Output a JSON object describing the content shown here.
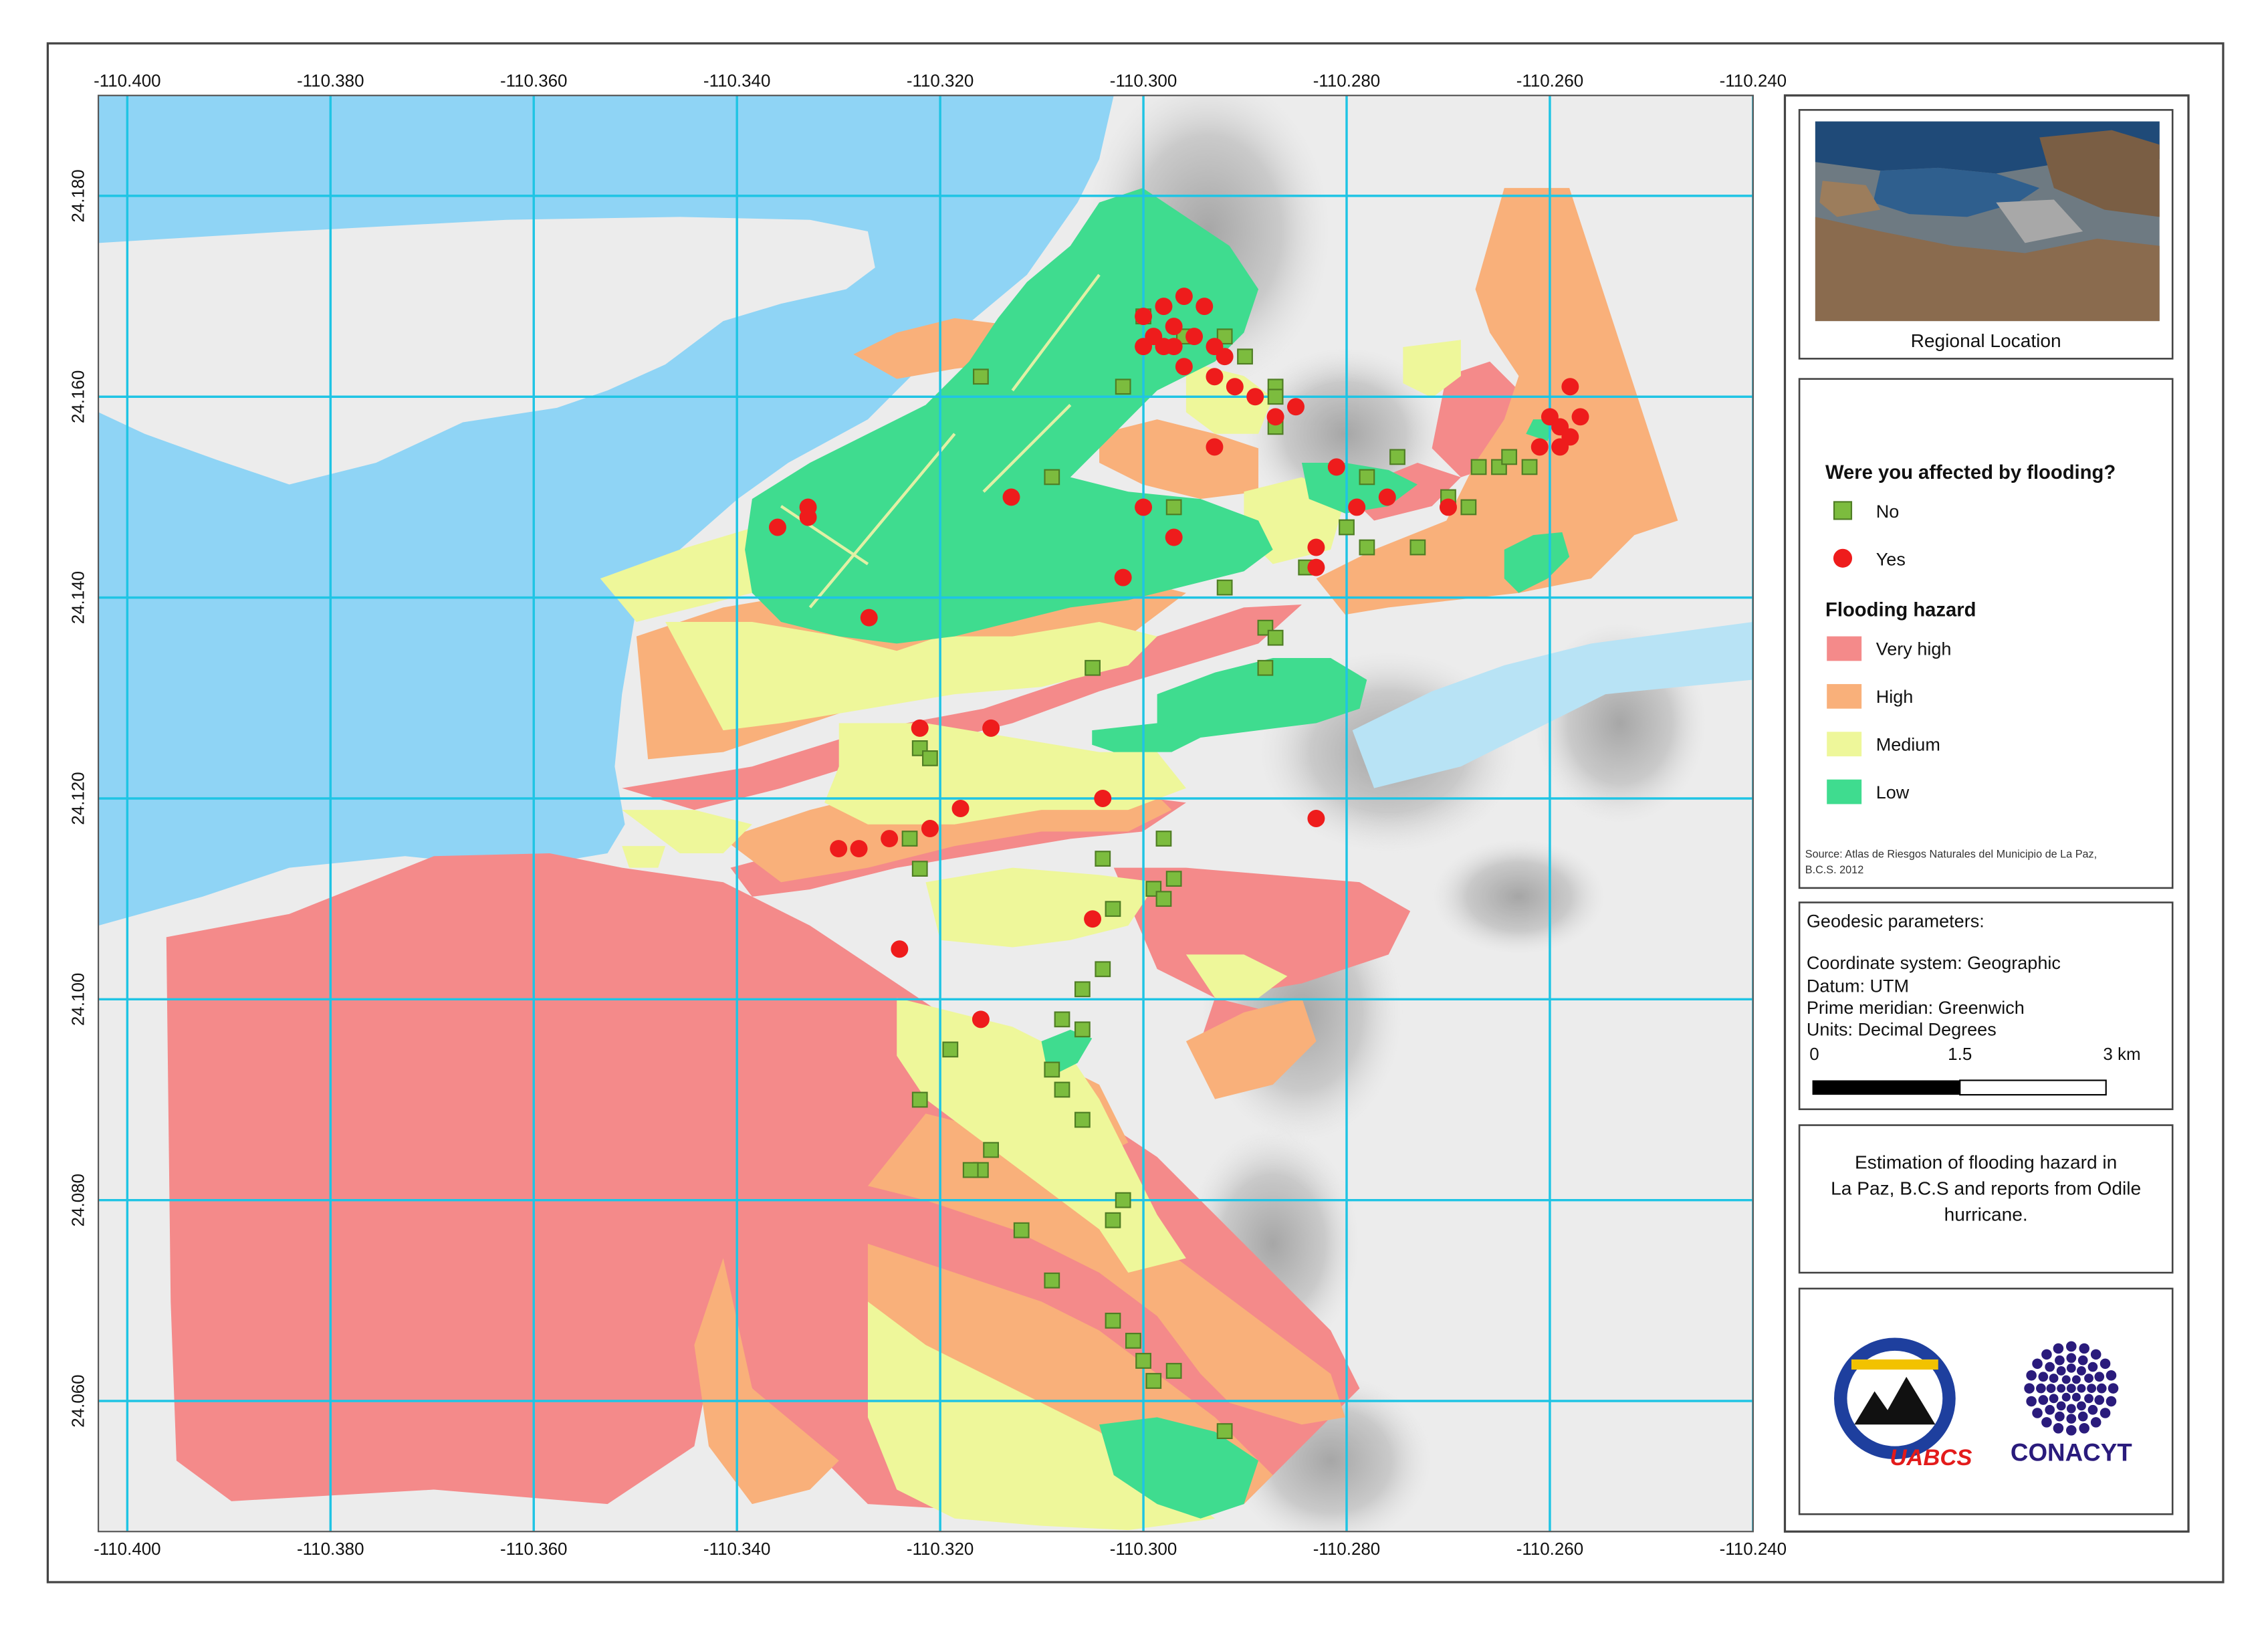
{
  "map": {
    "lon_ticks": [
      "-110.400",
      "-110.380",
      "-110.360",
      "-110.340",
      "-110.320",
      "-110.300",
      "-110.280",
      "-110.260",
      "-110.240"
    ],
    "lat_ticks": [
      "24.180",
      "24.160",
      "24.140",
      "24.120",
      "24.100",
      "24.080",
      "24.060"
    ],
    "lon_range": [
      -110.4,
      -110.24
    ],
    "lat_range": [
      24.047,
      24.19
    ],
    "colors": {
      "sea": "#8fd4f5",
      "land": "#ececec",
      "grid": "#1fc4e4",
      "very_high": "#f48a8a",
      "high": "#f9b07a",
      "medium": "#eef79a",
      "low": "#3fdc8f",
      "point_no": "#7cbc3e",
      "point_yes": "#ee1c1c"
    }
  },
  "regional_location": {
    "label": "Regional Location"
  },
  "legend": {
    "title": "Were you affected by flooding?",
    "no_label": "No",
    "yes_label": "Yes",
    "hazard_title": "Flooding hazard",
    "hazard_levels": [
      "Very high",
      "High",
      "Medium",
      "Low"
    ],
    "source_line1": "Source: Atlas de Riesgos Naturales del Municipio de La Paz,",
    "source_line2": "B.C.S. 2012"
  },
  "geodesic": {
    "title": "Geodesic parameters:",
    "coordinate_system": "Coordinate system: Geographic",
    "datum": "Datum: UTM",
    "prime_meridian": "Prime meridian: Greenwich",
    "units": "Units: Decimal Degrees",
    "scale_labels": [
      "0",
      "1.5",
      "3 km"
    ]
  },
  "description": {
    "line1": "Estimation of flooding hazard in",
    "line2": "La Paz, B.C.S and reports from Odile",
    "line3": "hurricane."
  },
  "logos": {
    "left_text": "UABCS",
    "right_text": "CONACYT"
  },
  "reports": {
    "yes": [
      [
        -110.298,
        24.169
      ],
      [
        -110.296,
        24.17
      ],
      [
        -110.294,
        24.169
      ],
      [
        -110.297,
        24.167
      ],
      [
        -110.3,
        24.168
      ],
      [
        -110.295,
        24.166
      ],
      [
        -110.293,
        24.165
      ],
      [
        -110.292,
        24.164
      ],
      [
        -110.293,
        24.162
      ],
      [
        -110.291,
        24.161
      ],
      [
        -110.299,
        24.166
      ],
      [
        -110.3,
        24.165
      ],
      [
        -110.297,
        24.165
      ],
      [
        -110.298,
        24.165
      ],
      [
        -110.296,
        24.163
      ],
      [
        -110.289,
        24.16
      ],
      [
        -110.287,
        24.158
      ],
      [
        -110.285,
        24.159
      ],
      [
        -110.293,
        24.155
      ],
      [
        -110.3,
        24.149
      ],
      [
        -110.297,
        24.146
      ],
      [
        -110.302,
        24.142
      ],
      [
        -110.281,
        24.153
      ],
      [
        -110.279,
        24.149
      ],
      [
        -110.276,
        24.15
      ],
      [
        -110.283,
        24.145
      ],
      [
        -110.283,
        24.143
      ],
      [
        -110.27,
        24.149
      ],
      [
        -110.26,
        24.158
      ],
      [
        -110.259,
        24.157
      ],
      [
        -110.258,
        24.156
      ],
      [
        -110.257,
        24.158
      ],
      [
        -110.258,
        24.161
      ],
      [
        -110.261,
        24.155
      ],
      [
        -110.259,
        24.155
      ],
      [
        -110.313,
        24.15
      ],
      [
        -110.333,
        24.149
      ],
      [
        -110.333,
        24.148
      ],
      [
        -110.336,
        24.147
      ],
      [
        -110.327,
        24.138
      ],
      [
        -110.322,
        24.127
      ],
      [
        -110.315,
        24.127
      ],
      [
        -110.304,
        24.12
      ],
      [
        -110.318,
        24.119
      ],
      [
        -110.321,
        24.117
      ],
      [
        -110.325,
        24.116
      ],
      [
        -110.328,
        24.115
      ],
      [
        -110.33,
        24.115
      ],
      [
        -110.324,
        24.105
      ],
      [
        -110.316,
        24.098
      ],
      [
        -110.305,
        24.108
      ],
      [
        -110.283,
        24.118
      ]
    ],
    "no": [
      [
        -110.3,
        24.168
      ],
      [
        -110.296,
        24.166
      ],
      [
        -110.292,
        24.166
      ],
      [
        -110.29,
        24.164
      ],
      [
        -110.316,
        24.162
      ],
      [
        -110.302,
        24.161
      ],
      [
        -110.287,
        24.161
      ],
      [
        -110.287,
        24.16
      ],
      [
        -110.287,
        24.157
      ],
      [
        -110.309,
        24.152
      ],
      [
        -110.297,
        24.149
      ],
      [
        -110.278,
        24.152
      ],
      [
        -110.275,
        24.154
      ],
      [
        -110.267,
        24.153
      ],
      [
        -110.265,
        24.153
      ],
      [
        -110.264,
        24.154
      ],
      [
        -110.262,
        24.153
      ],
      [
        -110.27,
        24.15
      ],
      [
        -110.268,
        24.149
      ],
      [
        -110.28,
        24.147
      ],
      [
        -110.278,
        24.145
      ],
      [
        -110.273,
        24.145
      ],
      [
        -110.284,
        24.143
      ],
      [
        -110.292,
        24.141
      ],
      [
        -110.288,
        24.137
      ],
      [
        -110.288,
        24.133
      ],
      [
        -110.287,
        24.136
      ],
      [
        -110.305,
        24.133
      ],
      [
        -110.322,
        24.125
      ],
      [
        -110.321,
        24.124
      ],
      [
        -110.323,
        24.116
      ],
      [
        -110.322,
        24.113
      ],
      [
        -110.304,
        24.114
      ],
      [
        -110.298,
        24.116
      ],
      [
        -110.297,
        24.112
      ],
      [
        -110.299,
        24.111
      ],
      [
        -110.298,
        24.11
      ],
      [
        -110.303,
        24.109
      ],
      [
        -110.304,
        24.103
      ],
      [
        -110.306,
        24.101
      ],
      [
        -110.308,
        24.098
      ],
      [
        -110.306,
        24.097
      ],
      [
        -110.309,
        24.093
      ],
      [
        -110.308,
        24.091
      ],
      [
        -110.306,
        24.088
      ],
      [
        -110.319,
        24.095
      ],
      [
        -110.322,
        24.09
      ],
      [
        -110.315,
        24.085
      ],
      [
        -110.316,
        24.083
      ],
      [
        -110.317,
        24.083
      ],
      [
        -110.312,
        24.077
      ],
      [
        -110.302,
        24.08
      ],
      [
        -110.303,
        24.078
      ],
      [
        -110.309,
        24.072
      ],
      [
        -110.303,
        24.068
      ],
      [
        -110.301,
        24.066
      ],
      [
        -110.3,
        24.064
      ],
      [
        -110.299,
        24.062
      ],
      [
        -110.297,
        24.063
      ],
      [
        -110.292,
        24.057
      ]
    ]
  }
}
